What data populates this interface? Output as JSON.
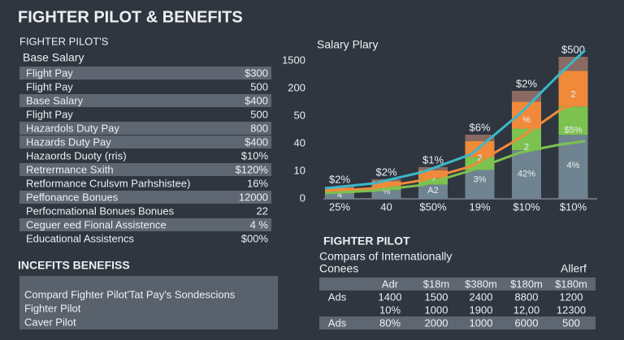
{
  "title": "FIGHTER PILOT & BENEFITS",
  "left_panel": {
    "heading": "FIGHTER PILOT'S",
    "subheading": "Base Salary",
    "rows": [
      {
        "label": "Flight Pay",
        "value": "$300",
        "shaded": true
      },
      {
        "label": "Flight Pay",
        "value": "500",
        "shaded": false
      },
      {
        "label": "Base Salary",
        "value": "$400",
        "shaded": true
      },
      {
        "label": "Flight Pay",
        "value": "500",
        "shaded": false
      },
      {
        "label": "Hazardols Duty Pay",
        "value": "800",
        "shaded": true
      },
      {
        "label": "Hazards Duty Pay",
        "value": "$400",
        "shaded": true
      },
      {
        "label": "Hazaords Duoty (rris)",
        "value": "$10%",
        "shaded": false
      },
      {
        "label": "Retrermance Sxith",
        "value": "$120%",
        "shaded": true
      },
      {
        "label": "Retformance Crulsvm Parhshistee)",
        "value": "16%",
        "shaded": false
      },
      {
        "label": "Peffonance Bonues",
        "value": "12000",
        "shaded": true
      },
      {
        "label": "Perfocmational Bonues Bonues",
        "value": "22",
        "shaded": false
      },
      {
        "label": "Ceguer eed Fional Assistence",
        "value": "4 %",
        "shaded": true
      },
      {
        "label": "Educational Assistencs",
        "value": "$00%",
        "shaded": false
      }
    ]
  },
  "benefits": {
    "heading": "INCEFITS BENEFISS",
    "lines": [
      "Compard Fighter Pilot'Tat Pay's Sondescions",
      "Fighter Pilot",
      "Caver Pilot"
    ]
  },
  "chart_panel": {
    "title": "Salary Plary",
    "y_labels": [
      "1500",
      "200",
      "50",
      "40",
      "10",
      "0"
    ],
    "x_labels": [
      "25%",
      "40",
      "$50%",
      "19%",
      "$10%",
      "$10%"
    ],
    "top_labels": [
      "$2%",
      "$2%",
      "$1%",
      "$6%",
      "$2%",
      "$500"
    ],
    "inner_labels": [
      [
        "4"
      ],
      [
        "%"
      ],
      [
        "2",
        "A2"
      ],
      [
        "2",
        "3%"
      ],
      [
        "%",
        "2",
        "42%"
      ],
      [
        "2",
        "$5%",
        "4%"
      ]
    ]
  },
  "comparison": {
    "heading": "FIGHTER PILOT",
    "subtitle": [
      "Compars of Internationally",
      "Conees"
    ],
    "note": "Allerf",
    "header": [
      "Adr",
      "$18m",
      "$380m",
      "$180m",
      "$180m"
    ],
    "rows": [
      {
        "label": "Ads",
        "cells": [
          "1400",
          "1500",
          "2400",
          "8800",
          "1200"
        ]
      },
      {
        "cells": [
          "10%",
          "1000",
          "1900",
          "12,00",
          "12300"
        ]
      },
      {
        "label": "Ads",
        "cells": [
          "80%",
          "2000",
          "1000",
          "6000",
          "500"
        ]
      }
    ]
  }
}
